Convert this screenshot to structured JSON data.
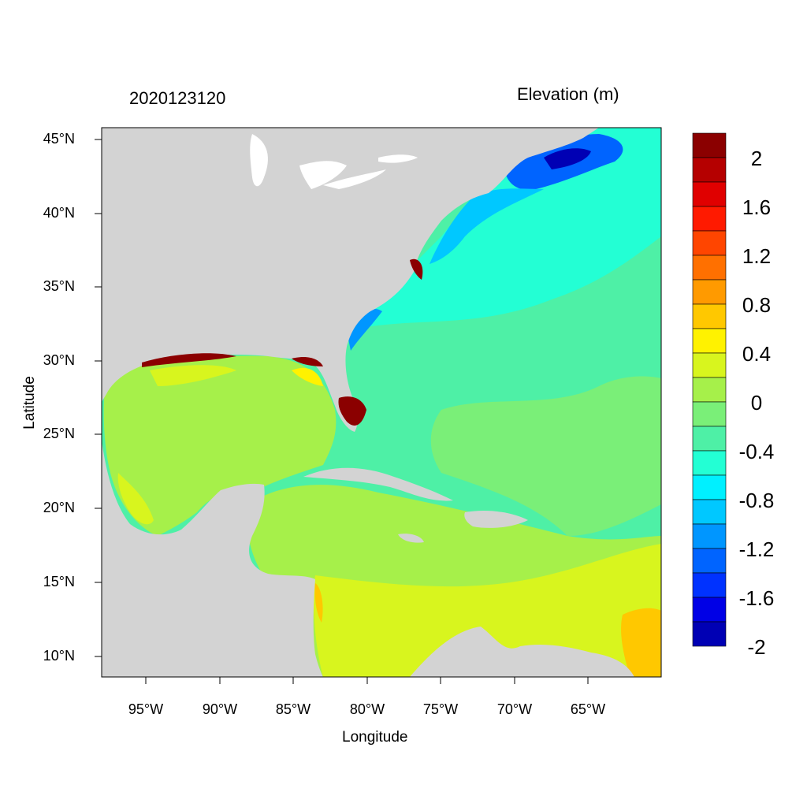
{
  "titles": {
    "timestamp": "2020123120",
    "variable": "Elevation (m)"
  },
  "axes": {
    "xlabel": "Longitude",
    "ylabel": "Latitude",
    "lat_ticks": [
      "45°N",
      "40°N",
      "35°N",
      "30°N",
      "25°N",
      "20°N",
      "15°N",
      "10°N"
    ],
    "lon_ticks": [
      "95°W",
      "90°W",
      "85°W",
      "80°W",
      "75°W",
      "70°W",
      "65°W"
    ]
  },
  "colorbar": {
    "labels": [
      "2",
      "1.6",
      "1.2",
      "0.8",
      "0.4",
      "0",
      "-0.4",
      "-0.8",
      "-1.2",
      "-1.6",
      "-2"
    ],
    "colors_top_to_bottom": [
      "#8b0000",
      "#b50000",
      "#e00000",
      "#ff1a00",
      "#ff4500",
      "#ff7000",
      "#ff9a00",
      "#ffc800",
      "#fff200",
      "#d8f51e",
      "#a6f04a",
      "#7aef78",
      "#4ef0a6",
      "#23ffd4",
      "#00f0ff",
      "#00c8ff",
      "#0096ff",
      "#0064ff",
      "#0032ff",
      "#0000e6",
      "#0000b4"
    ]
  },
  "colors": {
    "land": "#d3d3d3",
    "lakes": "#ffffff",
    "coastal_high": "#8b0000"
  }
}
